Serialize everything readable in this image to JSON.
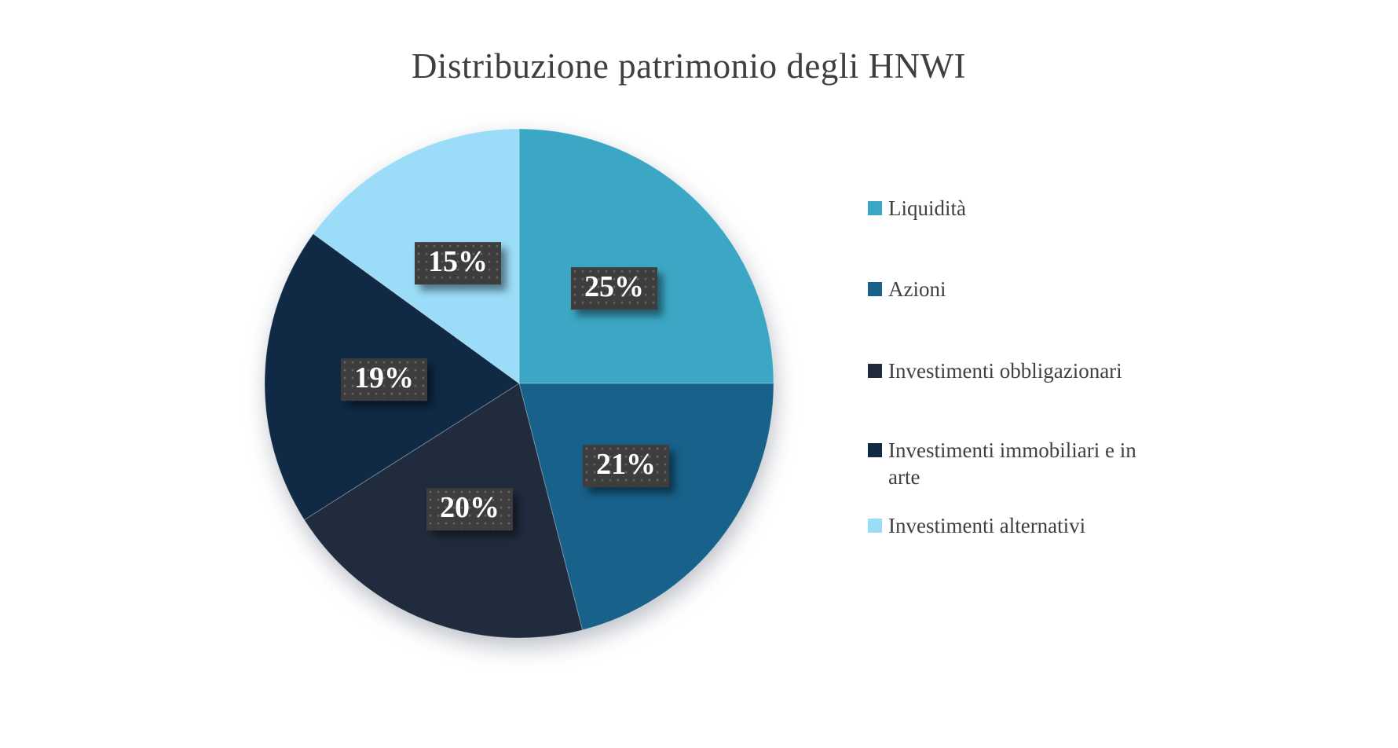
{
  "chart_data": {
    "type": "pie",
    "title": "Distribuzione patrimonio degli HNWI",
    "slices": [
      {
        "label": "Liquidità",
        "value": 25,
        "data_label": "25%",
        "color": "#3BA7C4"
      },
      {
        "label": "Azioni",
        "value": 21,
        "data_label": "21%",
        "color": "#17618A"
      },
      {
        "label": "Investimenti obbligazionari",
        "value": 20,
        "data_label": "20%",
        "color": "#202C3E"
      },
      {
        "label": "Investimenti immobiliari e in arte",
        "value": 19,
        "data_label": "19%",
        "color": "#102A46"
      },
      {
        "label": "Investimenti alternativi",
        "value": 15,
        "data_label": "15%",
        "color": "#9BDCF8"
      }
    ],
    "total": 100,
    "start_angle_deg": 0,
    "direction": "clockwise",
    "legend_position": "right",
    "data_label_style": {
      "background": "#3D3D3D",
      "dot_color": "#646464",
      "text_color": "#FFFFFF"
    },
    "title_color": "#3F3F3F",
    "legend_text_color": "#404040",
    "background": "#FFFFFF"
  }
}
